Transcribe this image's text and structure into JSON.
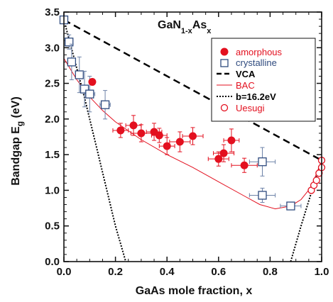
{
  "chart_data": {
    "type": "scatter",
    "title_main": "GaN",
    "title_sub1": "1-x",
    "title_mid": "As",
    "title_sub2": "x",
    "xlabel": "GaAs mole fraction, x",
    "ylabel_main": "Bandgap E",
    "ylabel_sub": "g",
    "ylabel_unit": " (eV)",
    "xlim": [
      0.0,
      1.0
    ],
    "ylim": [
      0.0,
      3.5
    ],
    "xticks": [
      "0.0",
      "0.2",
      "0.4",
      "0.6",
      "0.8",
      "1.0"
    ],
    "yticks": [
      "0.0",
      "0.5",
      "1.0",
      "1.5",
      "2.0",
      "2.5",
      "3.0",
      "3.5"
    ],
    "legend": [
      "amorphous",
      "crystalline",
      "VCA",
      "BAC",
      "b=16.2eV",
      "Uesugi"
    ],
    "colors": {
      "amorphous": "#e3101f",
      "crystalline": "#2e4a7e",
      "bac": "#e3101f",
      "uesugi": "#e3101f",
      "vca": "#000000",
      "bowing": "#000000"
    },
    "amorphous": [
      {
        "x": 0.11,
        "y": 2.52,
        "xerr": 0.0,
        "yerr": 0.0
      },
      {
        "x": 0.22,
        "y": 1.84,
        "xerr": 0.03,
        "yerr": 0.1
      },
      {
        "x": 0.27,
        "y": 1.91,
        "xerr": 0.03,
        "yerr": 0.14
      },
      {
        "x": 0.3,
        "y": 1.8,
        "xerr": 0.04,
        "yerr": 0.12
      },
      {
        "x": 0.35,
        "y": 1.82,
        "xerr": 0.03,
        "yerr": 0.12
      },
      {
        "x": 0.37,
        "y": 1.77,
        "xerr": 0.03,
        "yerr": 0.1
      },
      {
        "x": 0.4,
        "y": 1.62,
        "xerr": 0.03,
        "yerr": 0.12
      },
      {
        "x": 0.45,
        "y": 1.68,
        "xerr": 0.04,
        "yerr": 0.14
      },
      {
        "x": 0.5,
        "y": 1.76,
        "xerr": 0.04,
        "yerr": 0.12
      },
      {
        "x": 0.6,
        "y": 1.44,
        "xerr": 0.04,
        "yerr": 0.1
      },
      {
        "x": 0.62,
        "y": 1.52,
        "xerr": 0.04,
        "yerr": 0.12
      },
      {
        "x": 0.65,
        "y": 1.7,
        "xerr": 0.03,
        "yerr": 0.16
      },
      {
        "x": 0.7,
        "y": 1.35,
        "xerr": 0.05,
        "yerr": 0.1
      }
    ],
    "crystalline": [
      {
        "x": 0.0,
        "y": 3.39,
        "xerr": 0.01,
        "yerr": 0.05
      },
      {
        "x": 0.02,
        "y": 3.08,
        "xerr": 0.01,
        "yerr": 0.1
      },
      {
        "x": 0.03,
        "y": 2.8,
        "xerr": 0.01,
        "yerr": 0.25
      },
      {
        "x": 0.06,
        "y": 2.62,
        "xerr": 0.01,
        "yerr": 0.25
      },
      {
        "x": 0.08,
        "y": 2.42,
        "xerr": 0.01,
        "yerr": 0.25
      },
      {
        "x": 0.1,
        "y": 2.35,
        "xerr": 0.02,
        "yerr": 0.25
      },
      {
        "x": 0.16,
        "y": 2.2,
        "xerr": 0.02,
        "yerr": 0.2
      },
      {
        "x": 0.77,
        "y": 1.4,
        "xerr": 0.05,
        "yerr": 0.2
      },
      {
        "x": 0.77,
        "y": 0.93,
        "xerr": 0.05,
        "yerr": 0.1
      },
      {
        "x": 0.88,
        "y": 0.78,
        "xerr": 0.04,
        "yerr": 0.05
      }
    ],
    "uesugi": [
      {
        "x": 0.96,
        "y": 1.0
      },
      {
        "x": 0.97,
        "y": 1.07
      },
      {
        "x": 0.98,
        "y": 1.14
      },
      {
        "x": 0.99,
        "y": 1.24
      },
      {
        "x": 1.0,
        "y": 1.32
      },
      {
        "x": 1.0,
        "y": 1.42
      }
    ],
    "vca": [
      [
        0.0,
        3.39
      ],
      [
        1.0,
        1.42
      ]
    ],
    "bac": [
      [
        0.0,
        2.85
      ],
      [
        0.05,
        2.55
      ],
      [
        0.1,
        2.31
      ],
      [
        0.15,
        2.12
      ],
      [
        0.2,
        1.96
      ],
      [
        0.3,
        1.71
      ],
      [
        0.4,
        1.5
      ],
      [
        0.5,
        1.32
      ],
      [
        0.6,
        1.12
      ],
      [
        0.7,
        0.92
      ],
      [
        0.76,
        0.8
      ],
      [
        0.82,
        0.74
      ],
      [
        0.88,
        0.78
      ],
      [
        0.92,
        0.87
      ],
      [
        0.96,
        1.05
      ],
      [
        1.0,
        1.42
      ]
    ],
    "bowing_left": [
      [
        0.0,
        3.39
      ],
      [
        0.04,
        2.85
      ],
      [
        0.08,
        2.3
      ],
      [
        0.12,
        1.7
      ],
      [
        0.16,
        1.1
      ],
      [
        0.2,
        0.5
      ],
      [
        0.24,
        0.0
      ]
    ],
    "bowing_right": [
      [
        0.88,
        0.0
      ],
      [
        0.9,
        0.25
      ],
      [
        0.92,
        0.5
      ],
      [
        0.95,
        0.85
      ],
      [
        1.0,
        1.42
      ]
    ]
  }
}
